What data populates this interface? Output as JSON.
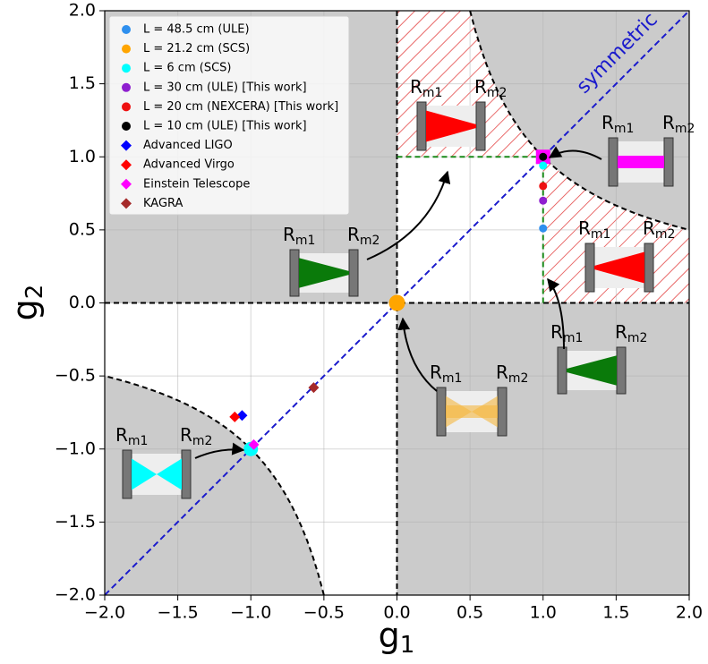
{
  "chart_data": {
    "type": "scatter",
    "xlabel": "g",
    "xlabel_sub": "1",
    "ylabel": "g",
    "ylabel_sub": "2",
    "xlim": [
      -2,
      2
    ],
    "ylim": [
      -2,
      2
    ],
    "xticks": [
      {
        "value": -2,
        "label": "−2.0"
      },
      {
        "value": -1.5,
        "label": "−1.5"
      },
      {
        "value": -1,
        "label": "−1.0"
      },
      {
        "value": -0.5,
        "label": "−0.5"
      },
      {
        "value": 0,
        "label": "0.0"
      },
      {
        "value": 0.5,
        "label": "0.5"
      },
      {
        "value": 1,
        "label": "1.0"
      },
      {
        "value": 1.5,
        "label": "1.5"
      },
      {
        "value": 2,
        "label": "2.0"
      }
    ],
    "yticks": [
      {
        "value": -2,
        "label": "−2.0"
      },
      {
        "value": -1.5,
        "label": "−1.5"
      },
      {
        "value": -1,
        "label": "−1.0"
      },
      {
        "value": -0.5,
        "label": "−0.5"
      },
      {
        "value": 0,
        "label": "0.0"
      },
      {
        "value": 0.5,
        "label": "0.5"
      },
      {
        "value": 1,
        "label": "1.0"
      },
      {
        "value": 1.5,
        "label": "1.5"
      },
      {
        "value": 2,
        "label": "2.0"
      }
    ],
    "grid": true,
    "legend": "upper left",
    "diagonal_label": "symmetric",
    "mirror_symbol": "R",
    "mirror_subscripts": [
      "m1",
      "m2"
    ],
    "series": [
      {
        "name": "L = 48.5 cm (ULE)",
        "color": "#2e8fee",
        "marker": "circle",
        "x": [
          1
        ],
        "y": [
          0.51
        ]
      },
      {
        "name": "L = 21.2 cm (SCS)",
        "color": "#ffa500",
        "marker": "circle",
        "size": 9,
        "x": [
          0
        ],
        "y": [
          0
        ]
      },
      {
        "name": "L = 6 cm (SCS)",
        "color": "#00ffff",
        "marker": "circle",
        "x": [
          1
        ],
        "y": [
          0.94
        ]
      },
      {
        "name": "L = 30 cm (ULE) [This work]",
        "color": "#8e1fcf",
        "marker": "circle",
        "x": [
          1
        ],
        "y": [
          0.7
        ]
      },
      {
        "name": "L = 20 cm (NEXCERA) [This work]",
        "color": "#ee1111",
        "marker": "circle",
        "x": [
          1
        ],
        "y": [
          0.8
        ]
      },
      {
        "name": "L = 10 cm (ULE) [This work]",
        "color": "#000000",
        "marker": "circle",
        "x": [
          1
        ],
        "y": [
          1
        ]
      },
      {
        "name": "Advanced LIGO",
        "color": "#0000ff",
        "marker": "diamond",
        "x": [
          -1.06
        ],
        "y": [
          -0.77
        ]
      },
      {
        "name": "Advanced Virgo",
        "color": "#ff0000",
        "marker": "diamond",
        "x": [
          -1.11
        ],
        "y": [
          -0.78
        ]
      },
      {
        "name": "Einstein Telescope",
        "color": "#ff00ff",
        "marker": "diamond",
        "x": [
          -0.98
        ],
        "y": [
          -0.97
        ]
      },
      {
        "name": "KAGRA",
        "color": "#a52a2a",
        "marker": "diamond",
        "x": [
          -0.57
        ],
        "y": [
          -0.58
        ]
      }
    ],
    "highlights": [
      {
        "x": 1,
        "y": 1,
        "color": "#ff00ff",
        "marker": "square"
      },
      {
        "x": -1,
        "y": -1,
        "color": "#00ffff",
        "marker": "circle"
      }
    ]
  }
}
